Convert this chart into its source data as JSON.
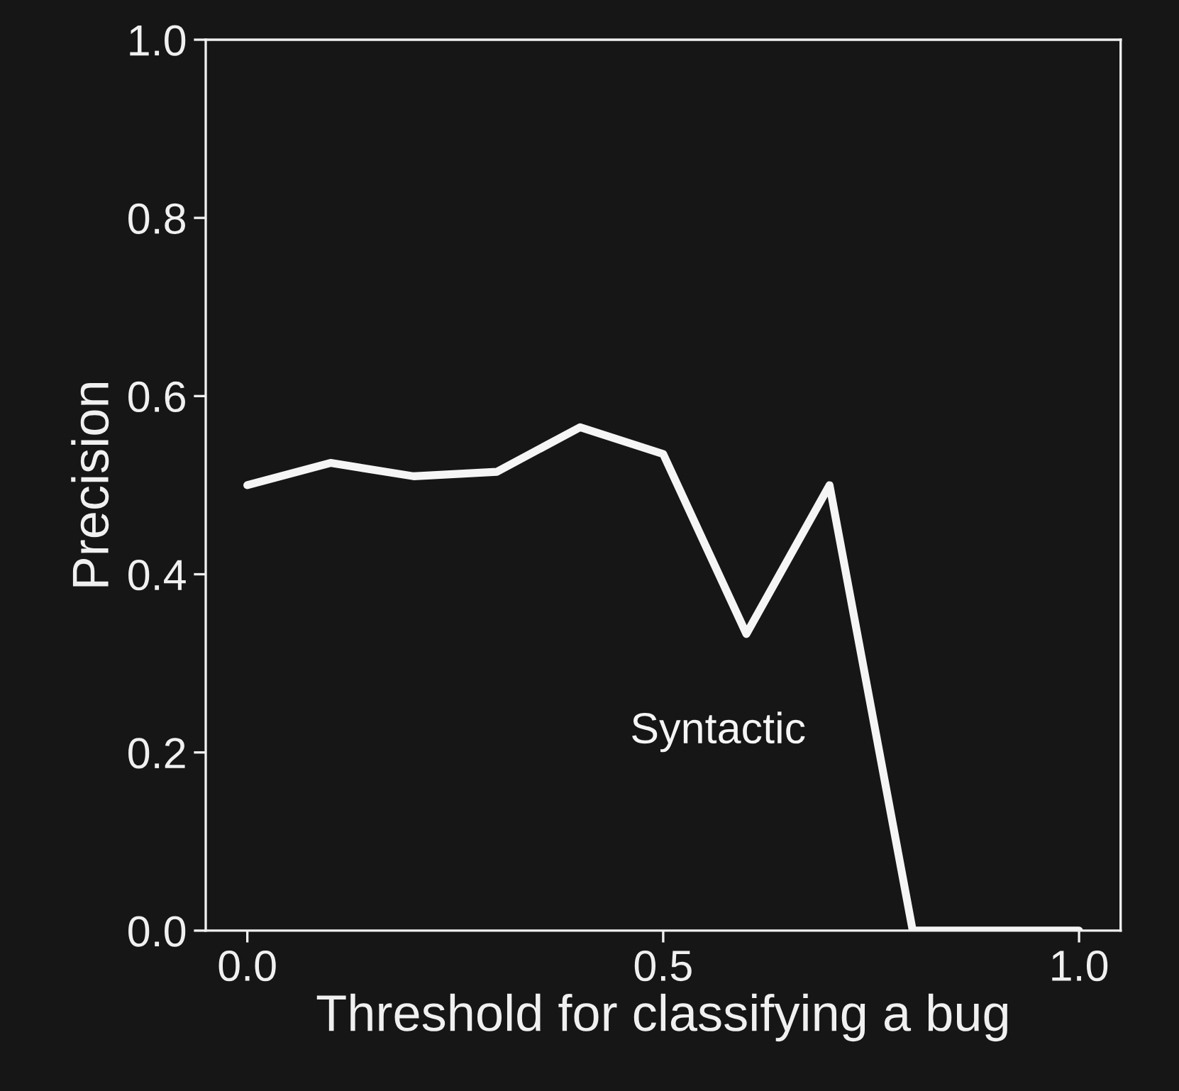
{
  "chart_data": {
    "type": "line",
    "xlabel": "Threshold for classifying a bug",
    "ylabel": "Precision",
    "x": [
      0.0,
      0.1,
      0.2,
      0.3,
      0.4,
      0.5,
      0.6,
      0.7,
      0.8,
      0.9,
      1.0
    ],
    "series": [
      {
        "name": "Syntactic",
        "color": "#f5f5f5",
        "values": [
          0.5,
          0.525,
          0.51,
          0.515,
          0.565,
          0.535,
          0.333,
          0.5,
          0,
          0,
          0
        ]
      }
    ],
    "xlim": [
      -0.05,
      1.05
    ],
    "ylim": [
      0,
      1
    ],
    "xticks": [
      {
        "value": 0,
        "label": "0.0"
      },
      {
        "value": 0.5,
        "label": "0.5"
      },
      {
        "value": 1,
        "label": "1.0"
      }
    ],
    "yticks": [
      {
        "value": 0,
        "label": "0.0"
      },
      {
        "value": 0.2,
        "label": "0.2"
      },
      {
        "value": 0.4,
        "label": "0.4"
      },
      {
        "value": 0.6,
        "label": "0.6"
      },
      {
        "value": 0.8,
        "label": "0.8"
      },
      {
        "value": 1,
        "label": "1.0"
      }
    ],
    "grid": false,
    "legend": false
  }
}
